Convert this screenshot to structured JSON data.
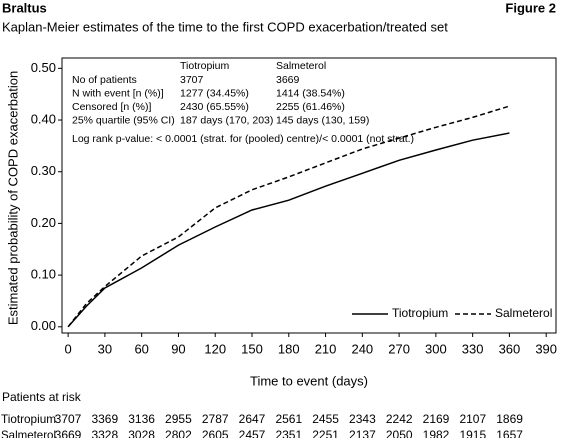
{
  "header": {
    "left": "Braltus",
    "right": "Figure 2"
  },
  "chart_data": {
    "type": "line",
    "title": "Kaplan-Meier estimates of the time to the first COPD exacerbation/treated set",
    "x_label": "Time to event (days)",
    "y_label": "Estimated probability of COPD exacerbation",
    "x": [
      0,
      15,
      30,
      60,
      90,
      120,
      150,
      180,
      210,
      240,
      270,
      300,
      330,
      360
    ],
    "series": [
      {
        "name": "Tiotropium",
        "color": "#000000",
        "dash": false,
        "values": [
          0,
          0.04,
          0.075,
          0.114,
          0.158,
          0.193,
          0.226,
          0.245,
          0.272,
          0.297,
          0.322,
          0.342,
          0.361,
          0.375
        ],
        "at_risk": [
          3707,
          3369,
          3136,
          2955,
          2787,
          2647,
          2561,
          2455,
          2343,
          2242,
          2169,
          2107,
          1869
        ]
      },
      {
        "name": "Salmeterol",
        "color": "#000000",
        "dash": true,
        "values": [
          0,
          0.045,
          0.078,
          0.137,
          0.174,
          0.23,
          0.265,
          0.29,
          0.317,
          0.344,
          0.365,
          0.386,
          0.405,
          0.427
        ],
        "at_risk": [
          3669,
          3328,
          3028,
          2802,
          2605,
          2457,
          2351,
          2251,
          2137,
          2050,
          1982,
          1915,
          1657
        ]
      }
    ],
    "xlim": [
      -5,
      398
    ],
    "ylim": [
      -0.012,
      0.52
    ],
    "xticks": [
      0,
      30,
      60,
      90,
      120,
      150,
      180,
      210,
      240,
      270,
      300,
      330,
      360,
      390
    ],
    "yticks": [
      {
        "value": 0,
        "label": "0.00"
      },
      {
        "value": 0.1,
        "label": "0.10"
      },
      {
        "value": 0.2,
        "label": "0.20"
      },
      {
        "value": 0.3,
        "label": "0.30"
      },
      {
        "value": 0.4,
        "label": "0.40"
      },
      {
        "value": 0.5,
        "label": "0.50"
      }
    ],
    "legend": "lower right",
    "stats_table": {
      "columns": [
        "Tiotropium",
        "Salmeterol"
      ],
      "rows": [
        {
          "label": "No of patients",
          "values": [
            "3707",
            "3669"
          ]
        },
        {
          "label": "N with event [n (%)]",
          "values": [
            "1277 (34.45%)",
            "1414 (38.54%)"
          ]
        },
        {
          "label": "Censored [n (%)]",
          "values": [
            "2430 (65.55%)",
            "2255 (61.46%)"
          ]
        },
        {
          "label": "25% quartile (95% CI)",
          "values": [
            "187 days (170, 203)",
            "145 days (130, 159)"
          ]
        }
      ]
    },
    "annotation": "Log rank p-value: < 0.0001 (strat. for (pooled) centre)/< 0.0001 (not strat.)",
    "risk_title": "Patients at risk"
  }
}
